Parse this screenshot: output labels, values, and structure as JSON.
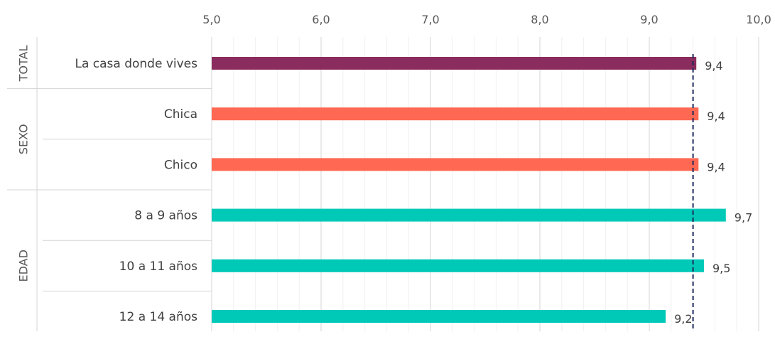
{
  "chart_data": {
    "type": "bar",
    "orientation": "horizontal",
    "xlim": [
      5.0,
      10.0
    ],
    "x_ticks": [
      "5,0",
      "6,0",
      "7,0",
      "8,0",
      "9,0",
      "10,0"
    ],
    "x_tick_values": [
      5,
      6,
      7,
      8,
      9,
      10
    ],
    "grid": true,
    "minor_grid": true,
    "reference_line": 9.4,
    "groups": [
      {
        "label": "TOTAL",
        "items": [
          {
            "label": "La casa donde vives",
            "value": 9.43,
            "value_label": "9,4",
            "color": "#8B2C5E"
          }
        ]
      },
      {
        "label": "SEXO",
        "items": [
          {
            "label": "Chica",
            "value": 9.45,
            "value_label": "9,4",
            "color": "#FF6852"
          },
          {
            "label": "Chico",
            "value": 9.45,
            "value_label": "9,4",
            "color": "#FF6852"
          }
        ]
      },
      {
        "label": "EDAD",
        "items": [
          {
            "label": "8 a 9 años",
            "value": 9.7,
            "value_label": "9,7",
            "color": "#00C9B8"
          },
          {
            "label": "10 a 11 años",
            "value": 9.5,
            "value_label": "9,5",
            "color": "#00C9B8"
          },
          {
            "label": "12 a 14 años",
            "value": 9.15,
            "value_label": "9,2",
            "color": "#00C9B8"
          }
        ]
      }
    ]
  }
}
